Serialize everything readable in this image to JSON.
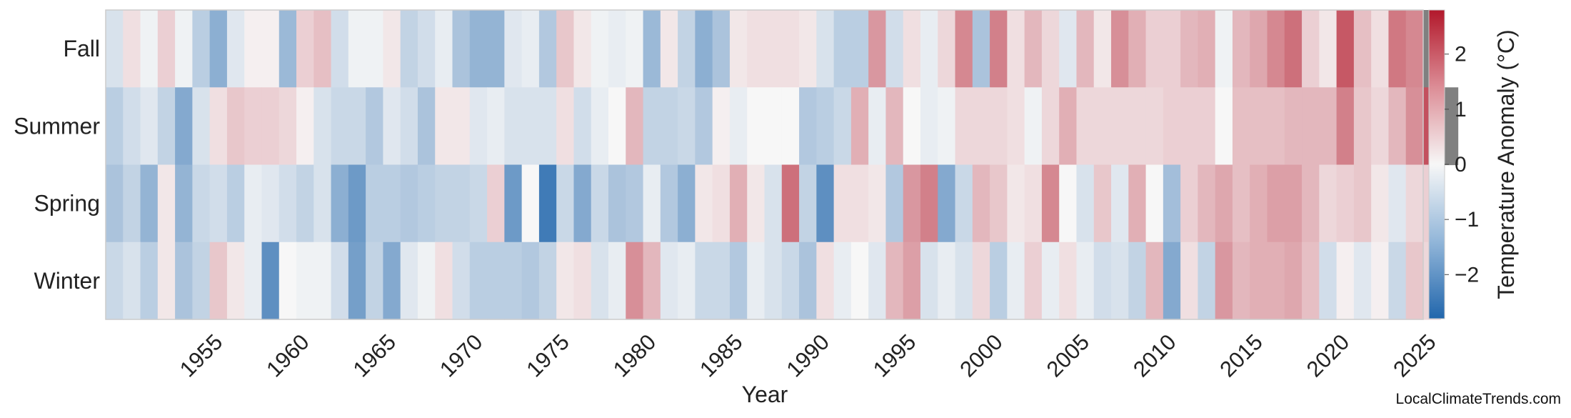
{
  "chart_data": {
    "type": "heatmap",
    "title": "",
    "xlabel": "Year",
    "ylabel": "",
    "years_start": 1950,
    "years_end": 2025,
    "x_ticks": [
      "1955",
      "1960",
      "1965",
      "1970",
      "1975",
      "1980",
      "1985",
      "1990",
      "1995",
      "2000",
      "2005",
      "2010",
      "2015",
      "2020",
      "2025"
    ],
    "rows": [
      {
        "name": "Fall",
        "values": [
          -0.4,
          0.3,
          -0.1,
          0.5,
          -0.1,
          -0.8,
          -1.4,
          -0.3,
          0.1,
          0.1,
          -1.2,
          0.5,
          0.7,
          -0.5,
          -0.1,
          -0.1,
          0.2,
          -0.7,
          -0.5,
          -0.2,
          -1.0,
          -1.3,
          -1.3,
          -0.3,
          -0.2,
          -0.9,
          0.6,
          0.2,
          -0.1,
          -0.2,
          -0.1,
          -1.2,
          0.2,
          -0.7,
          -1.4,
          -1.0,
          0.2,
          0.3,
          0.3,
          0.3,
          0.2,
          -0.4,
          -0.8,
          -0.8,
          1.2,
          -0.5,
          0.3,
          -0.2,
          0.4,
          1.4,
          -1.0,
          1.5,
          0.3,
          0.8,
          0.4,
          -0.3,
          0.8,
          0.2,
          1.3,
          0.9,
          0.5,
          0.5,
          0.8,
          0.9,
          -0.1,
          0.8,
          1.0,
          1.4,
          1.7,
          0.5,
          0.2,
          2.0,
          0.7,
          0.3,
          1.6,
          1.4,
          null
        ]
      },
      {
        "name": "Summer",
        "values": [
          -0.8,
          -0.5,
          -0.3,
          -0.7,
          -1.5,
          -0.4,
          0.3,
          0.6,
          0.5,
          0.5,
          0.4,
          0.1,
          -0.4,
          -0.6,
          -0.6,
          -0.9,
          -0.3,
          -0.5,
          -1.0,
          0.2,
          0.2,
          -0.3,
          -0.2,
          -0.4,
          -0.4,
          -0.4,
          0.3,
          -0.5,
          -0.2,
          0.0,
          0.8,
          -0.7,
          -0.7,
          -0.6,
          -0.9,
          0.1,
          -0.2,
          0.0,
          0.0,
          0.0,
          -0.9,
          -0.8,
          -0.6,
          0.9,
          -0.2,
          0.8,
          0.0,
          -0.2,
          -0.1,
          0.4,
          0.4,
          0.4,
          0.3,
          -0.1,
          0.4,
          0.9,
          0.4,
          0.4,
          0.4,
          0.4,
          0.4,
          0.5,
          0.5,
          0.5,
          0.0,
          0.7,
          0.7,
          0.7,
          0.8,
          0.8,
          0.8,
          1.5,
          0.6,
          0.4,
          0.8,
          1.3,
          2.1,
          null
        ]
      },
      {
        "name": "Spring",
        "values": [
          -1.0,
          -0.7,
          -1.3,
          0.2,
          -1.3,
          -0.6,
          -0.5,
          -0.8,
          -0.2,
          -0.3,
          -0.5,
          -0.7,
          -0.4,
          -1.4,
          -1.8,
          -0.8,
          -0.8,
          -0.9,
          -0.8,
          -0.7,
          -0.7,
          -0.6,
          0.5,
          -1.8,
          0.0,
          -2.4,
          -0.6,
          -1.5,
          -0.6,
          -1.0,
          -0.9,
          -0.2,
          -0.9,
          -1.4,
          0.2,
          0.3,
          0.9,
          0.2,
          -0.4,
          1.7,
          -0.7,
          -2.0,
          0.3,
          0.3,
          0.2,
          -0.9,
          1.2,
          1.5,
          -1.5,
          -0.6,
          0.8,
          0.6,
          0.2,
          0.3,
          1.4,
          0.0,
          -0.4,
          0.6,
          -0.3,
          0.9,
          0.0,
          -1.1,
          0.5,
          0.8,
          1.0,
          0.7,
          0.9,
          1.1,
          1.1,
          0.8,
          0.4,
          0.5,
          0.6,
          0.2,
          -0.3,
          0.4,
          0.5
        ]
      },
      {
        "name": "Winter",
        "values": [
          -0.6,
          -0.4,
          -0.8,
          0.2,
          -1.0,
          -0.7,
          0.6,
          0.2,
          -0.2,
          -2.0,
          0.0,
          -0.1,
          -0.1,
          -0.5,
          -1.7,
          -0.7,
          -1.5,
          -0.3,
          -0.1,
          0.3,
          -0.5,
          -0.8,
          -0.8,
          -0.8,
          -0.9,
          -0.7,
          0.2,
          0.3,
          -0.4,
          -0.2,
          1.3,
          0.8,
          -0.3,
          -0.2,
          -0.6,
          -0.6,
          -0.9,
          -0.2,
          -0.4,
          -0.6,
          -1.0,
          0.3,
          -0.2,
          0.0,
          -0.3,
          0.8,
          1.1,
          -0.4,
          -0.2,
          -0.4,
          0.4,
          -0.8,
          -0.2,
          0.5,
          -0.2,
          0.3,
          -0.2,
          -0.5,
          -0.4,
          -0.7,
          0.8,
          -1.5,
          0.3,
          -0.7,
          1.2,
          0.8,
          0.9,
          0.9,
          1.0,
          0.7,
          -0.5,
          0.1,
          -0.3,
          0.1,
          -0.6,
          0.6,
          0.4
        ]
      }
    ],
    "colorbar": {
      "label": "Temperature Anomaly (°C)",
      "min": -2.8,
      "max": 2.8,
      "ticks": [
        2,
        1,
        0,
        -1,
        -2
      ],
      "tick_labels": [
        "2",
        "1",
        "0",
        "−1",
        "−2"
      ]
    },
    "colorscale": {
      "neg": "#2166ac",
      "mid": "#f7f7f7",
      "pos": "#b2182b",
      "missing": "#808080"
    },
    "grid": false
  },
  "credit": "LocalClimateTrends.com"
}
